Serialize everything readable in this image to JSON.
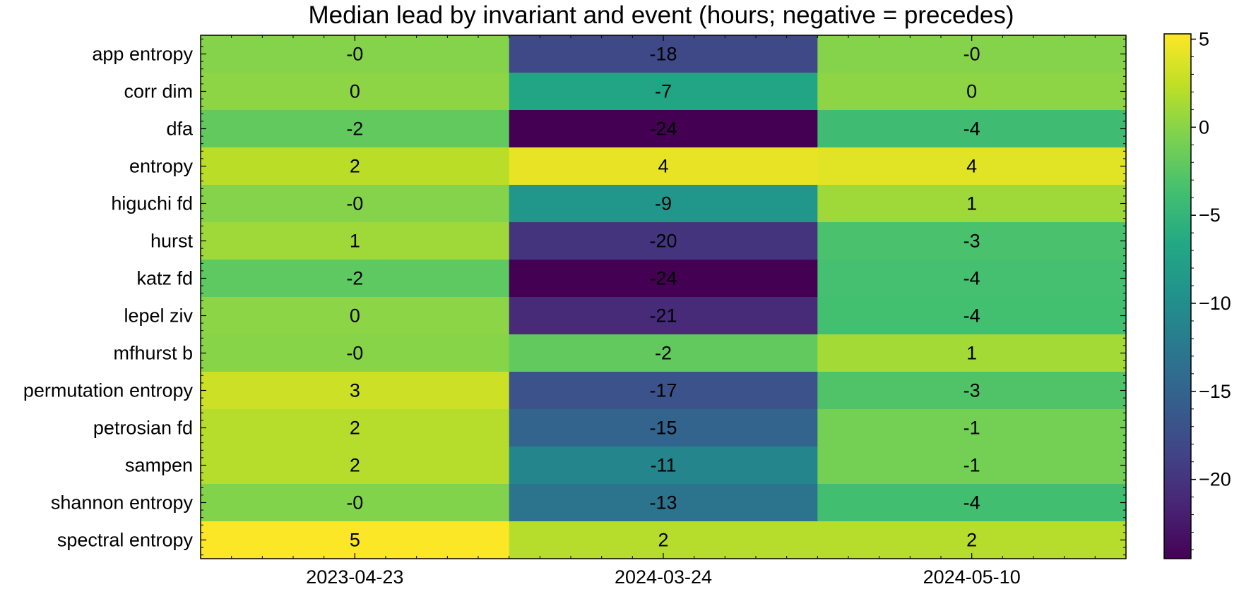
{
  "chart_data": {
    "type": "heatmap",
    "title": "Median lead by invariant and event (hours; negative = precedes)",
    "rows": [
      "app entropy",
      "corr dim",
      "dfa",
      "entropy",
      "higuchi fd",
      "hurst",
      "katz fd",
      "lepel ziv",
      "mfhurst b",
      "permutation entropy",
      "petrosian fd",
      "sampen",
      "shannon entropy",
      "spectral entropy"
    ],
    "columns": [
      "2023-04-23",
      "2024-03-24",
      "2024-05-10"
    ],
    "values": [
      [
        -0.2,
        -18.0,
        -0.2
      ],
      [
        0.2,
        -7.0,
        0.2
      ],
      [
        -2.0,
        -24.5,
        -4.0
      ],
      [
        2.2,
        4.3,
        4.0
      ],
      [
        -0.2,
        -9.0,
        1.0
      ],
      [
        1.0,
        -20.0,
        -3.3
      ],
      [
        -2.2,
        -24.5,
        -3.6
      ],
      [
        0.1,
        -21.0,
        -3.7
      ],
      [
        -0.1,
        -2.0,
        1.2
      ],
      [
        3.0,
        -17.0,
        -3.0
      ],
      [
        2.0,
        -15.0,
        -1.0
      ],
      [
        2.0,
        -11.0,
        -1.0
      ],
      [
        -0.3,
        -13.0,
        -3.8
      ],
      [
        5.2,
        2.0,
        2.0
      ]
    ],
    "cell_labels": [
      [
        "-0",
        "-18",
        "-0"
      ],
      [
        "0",
        "-7",
        "0"
      ],
      [
        "-2",
        "-24",
        "-4"
      ],
      [
        "2",
        "4",
        "4"
      ],
      [
        "-0",
        "-9",
        "1"
      ],
      [
        "1",
        "-20",
        "-3"
      ],
      [
        "-2",
        "-24",
        "-4"
      ],
      [
        "0",
        "-21",
        "-4"
      ],
      [
        "-0",
        "-2",
        "1"
      ],
      [
        "3",
        "-17",
        "-3"
      ],
      [
        "2",
        "-15",
        "-1"
      ],
      [
        "2",
        "-11",
        "-1"
      ],
      [
        "-0",
        "-13",
        "-4"
      ],
      [
        "5",
        "2",
        "2"
      ]
    ],
    "colormap": "viridis",
    "color_range": [
      -24.5,
      5.3
    ],
    "colorbar_ticks": [
      5,
      0,
      -5,
      -10,
      -15,
      -20
    ],
    "colorbar_tick_labels": [
      "5",
      "0",
      "−5",
      "−10",
      "−15",
      "−20"
    ]
  }
}
